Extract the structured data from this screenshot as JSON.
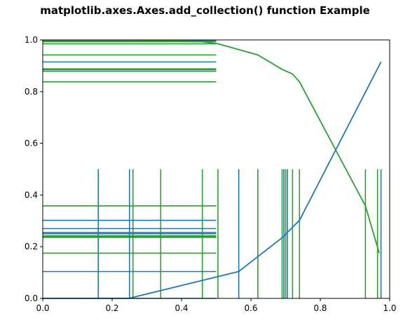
{
  "chart_data": {
    "type": "line",
    "title": "matplotlib.axes.Axes.add_collection() function Example",
    "xlabel": "",
    "ylabel": "",
    "xlim": [
      0.0,
      1.0
    ],
    "ylim": [
      0.0,
      1.0
    ],
    "grid": false,
    "x_ticks": [
      "0.0",
      "0.2",
      "0.4",
      "0.6",
      "0.8",
      "1.0"
    ],
    "y_ticks": [
      "0.0",
      "0.2",
      "0.4",
      "0.6",
      "0.8",
      "1.0"
    ],
    "colors": {
      "blue": "#1f77b4",
      "green": "#2ca02c"
    },
    "series": [
      {
        "color": "blue",
        "x": [
          0.0,
          0.16,
          0.25,
          0.26,
          0.565,
          0.695,
          0.705,
          0.74,
          0.975
        ],
        "y": [
          0.0,
          0.0,
          0.0,
          0.004,
          0.104,
          0.24,
          0.255,
          0.302,
          0.915
        ]
      },
      {
        "color": "green",
        "x": [
          0.0,
          0.26,
          0.34,
          0.46,
          0.505,
          0.62,
          0.69,
          0.72,
          0.74,
          0.93,
          0.97
        ],
        "y": [
          0.998,
          0.998,
          0.996,
          0.993,
          0.985,
          0.942,
          0.886,
          0.868,
          0.838,
          0.358,
          0.175
        ]
      }
    ],
    "vertical_segments": {
      "y_range": [
        0.0,
        0.5
      ],
      "blue": [
        0.16,
        0.25,
        0.565,
        0.695,
        0.705,
        0.975
      ],
      "green": [
        0.26,
        0.34,
        0.46,
        0.505,
        0.62,
        0.69,
        0.7,
        0.72,
        0.74,
        0.93,
        0.965
      ]
    },
    "horizontal_segments": {
      "x_range": [
        0.0,
        0.5
      ],
      "blue": [
        0.0,
        0.104,
        0.24,
        0.25,
        0.255,
        0.27,
        0.302,
        0.915,
        0.885,
        0.997
      ],
      "green": [
        0.175,
        0.236,
        0.242,
        0.358,
        0.838,
        0.879,
        0.888,
        0.942,
        0.985,
        0.993
      ]
    }
  }
}
